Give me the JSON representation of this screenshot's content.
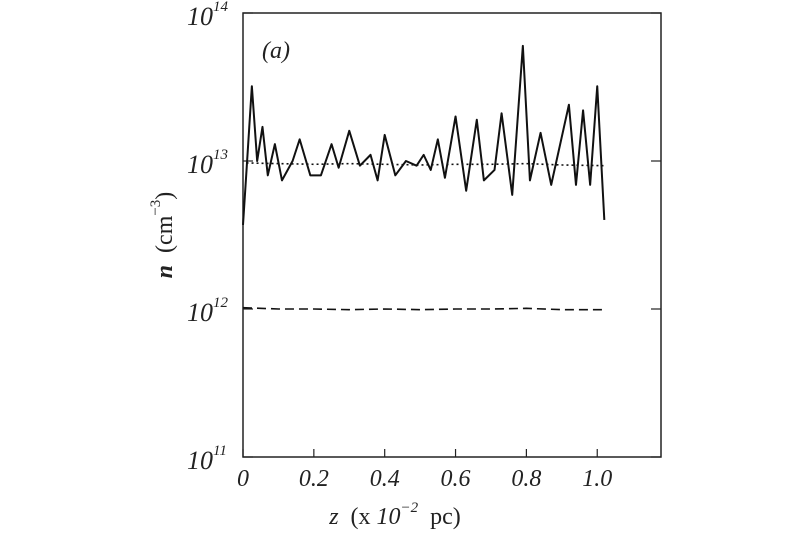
{
  "chart_data": {
    "type": "line",
    "annotation": "(a)",
    "x_label": [
      "z",
      "(x",
      "10",
      "−2",
      "pc)"
    ],
    "y_label": [
      "n",
      "(cm",
      "−3",
      ")"
    ],
    "xlim": [
      0,
      1.18
    ],
    "xticks": [
      0,
      0.2,
      0.4,
      0.6,
      0.8,
      {
        "value": 1,
        "label": "1.0"
      }
    ],
    "ylim": [
      100000000000,
      100000000000000
    ],
    "log_y": true,
    "yticks": [
      {
        "value": 100000000000,
        "label": "10",
        "exponent": "11"
      },
      {
        "value": 1000000000000,
        "label": "10",
        "exponent": "12"
      },
      {
        "value": 10000000000000,
        "label": "10",
        "exponent": "13"
      },
      {
        "value": 100000000000000,
        "label": "10",
        "exponent": "14"
      }
    ],
    "series": [
      {
        "color": "#111111",
        "dash": "solid",
        "x": [
          0,
          0.01,
          0.025,
          0.04,
          0.055,
          0.07,
          0.09,
          0.11,
          0.14,
          0.16,
          0.19,
          0.22,
          0.25,
          0.27,
          0.3,
          0.33,
          0.36,
          0.38,
          0.4,
          0.43,
          0.46,
          0.49,
          0.51,
          0.53,
          0.55,
          0.57,
          0.6,
          0.63,
          0.66,
          0.68,
          0.71,
          0.73,
          0.76,
          0.79,
          0.81,
          0.84,
          0.87,
          0.92,
          0.94,
          0.96,
          0.98,
          1.0,
          1.02
        ],
        "values": [
          3700000000000,
          8700000000000,
          32000000000000,
          10000000000000,
          17000000000000,
          8000000000000,
          13000000000000,
          7400000000000,
          10000000000000,
          14000000000000,
          8000000000000,
          8000000000000,
          13000000000000,
          9000000000000,
          16000000000000,
          9300000000000,
          11000000000000,
          7400000000000,
          15000000000000,
          8000000000000,
          10000000000000,
          9300000000000,
          11000000000000,
          8700000000000,
          14000000000000,
          7700000000000,
          20000000000000,
          6300000000000,
          19000000000000,
          7400000000000,
          8700000000000,
          21000000000000,
          5900000000000,
          60000000000000,
          7400000000000,
          15500000000000,
          6900000000000,
          24000000000000,
          6900000000000,
          22000000000000,
          6900000000000,
          32000000000000,
          4000000000000
        ]
      },
      {
        "color": "#111111",
        "dash": "dotted",
        "x": [
          0.01,
          0.1,
          0.2,
          0.3,
          0.4,
          0.5,
          0.6,
          0.7,
          0.8,
          0.9,
          1.02
        ],
        "values": [
          9700000000000,
          9600000000000,
          9500000000000,
          9600000000000,
          9500000000000,
          9400000000000,
          9500000000000,
          9500000000000,
          9600000000000,
          9400000000000,
          9300000000000
        ]
      },
      {
        "color": "#111111",
        "dash": "dashed",
        "x": [
          0,
          0.1,
          0.2,
          0.3,
          0.4,
          0.5,
          0.6,
          0.7,
          0.8,
          0.9,
          1.02
        ],
        "values": [
          1020000000000,
          1000000000000,
          1000000000000,
          990000000000,
          1000000000000,
          990000000000,
          1000000000000,
          1000000000000,
          1010000000000,
          990000000000,
          990000000000
        ]
      }
    ]
  }
}
